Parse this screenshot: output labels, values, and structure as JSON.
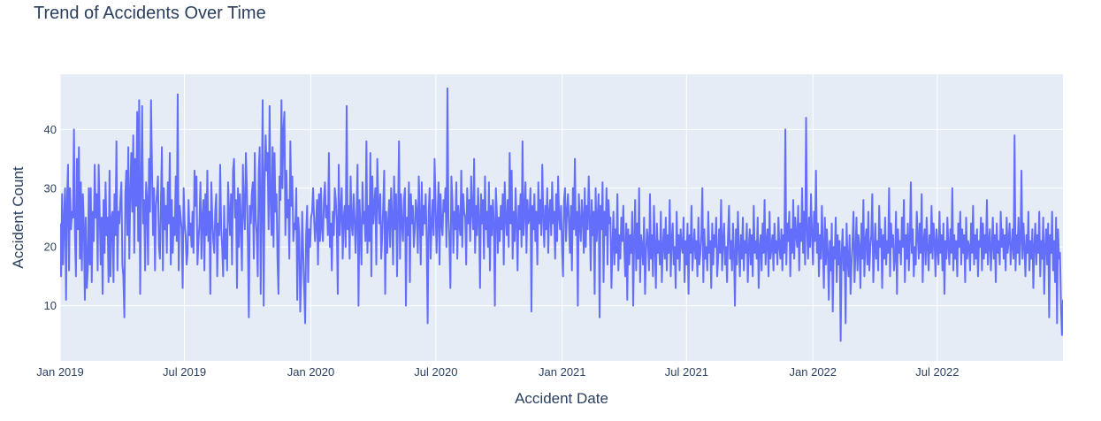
{
  "chart_data": {
    "type": "line",
    "title": "Trend of Accidents Over Time",
    "xlabel": "Accident Date",
    "ylabel": "Accident Count",
    "x_range": [
      "2019-01-01",
      "2022-12-31"
    ],
    "ylim": [
      0.6,
      49.4
    ],
    "x_ticks": [
      {
        "date": "2019-01-01",
        "label": "Jan 2019"
      },
      {
        "date": "2019-07-01",
        "label": "Jul 2019"
      },
      {
        "date": "2020-01-01",
        "label": "Jan 2020"
      },
      {
        "date": "2020-07-01",
        "label": "Jul 2020"
      },
      {
        "date": "2021-01-01",
        "label": "Jan 2021"
      },
      {
        "date": "2021-07-01",
        "label": "Jul 2021"
      },
      {
        "date": "2022-01-01",
        "label": "Jan 2022"
      },
      {
        "date": "2022-07-01",
        "label": "Jul 2022"
      }
    ],
    "y_ticks": [
      10,
      20,
      30,
      40
    ],
    "grid": true,
    "line_color": "#636efa",
    "plot_bg": "#e5ecf6",
    "series": [
      {
        "x_start": "2019-01-01",
        "x_end": "2022-12-31",
        "values": [
          24,
          15,
          29,
          17,
          25,
          30,
          11,
          28,
          34,
          16,
          30,
          23,
          26,
          25,
          40,
          22,
          15,
          35,
          23,
          37,
          18,
          31,
          16,
          29,
          24,
          11,
          25,
          13,
          16,
          30,
          17,
          30,
          14,
          26,
          21,
          34,
          25,
          29,
          16,
          34,
          26,
          17,
          25,
          12,
          28,
          19,
          31,
          22,
          25,
          14,
          33,
          15,
          25,
          26,
          14,
          29,
          22,
          38,
          16,
          26,
          24,
          28,
          31,
          17,
          15,
          8,
          29,
          33,
          22,
          37,
          18,
          29,
          36,
          26,
          39,
          19,
          35,
          27,
          43,
          21,
          45,
          12,
          30,
          44,
          24,
          28,
          16,
          31,
          28,
          17,
          35,
          26,
          45,
          33,
          22,
          30,
          16,
          27,
          29,
          32,
          20,
          18,
          27,
          37,
          16,
          30,
          23,
          27,
          19,
          31,
          24,
          36,
          17,
          28,
          19,
          25,
          22,
          32,
          21,
          46,
          16,
          27,
          25,
          23,
          13,
          30,
          24,
          22,
          17,
          19,
          28,
          22,
          24,
          20,
          26,
          19,
          33,
          27,
          32,
          17,
          21,
          24,
          31,
          18,
          25,
          28,
          16,
          29,
          22,
          33,
          21,
          26,
          12,
          31,
          25,
          21,
          19,
          26,
          29,
          15,
          24,
          22,
          34,
          23,
          20,
          15,
          27,
          18,
          23,
          16,
          31,
          26,
          22,
          29,
          17,
          33,
          35,
          25,
          28,
          13,
          30,
          20,
          29,
          24,
          16,
          34,
          26,
          23,
          36,
          30,
          21,
          8,
          27,
          24,
          29,
          31,
          18,
          36,
          25,
          22,
          15,
          33,
          37,
          12,
          28,
          45,
          10,
          31,
          39,
          33,
          36,
          23,
          44,
          28,
          22,
          37,
          20,
          36,
          26,
          29,
          18,
          12,
          32,
          28,
          45,
          30,
          40,
          43,
          22,
          33,
          25,
          28,
          18,
          38,
          27,
          32,
          21,
          24,
          23,
          30,
          11,
          25,
          22,
          9,
          15,
          26,
          19,
          13,
          7,
          22,
          27,
          14,
          23,
          20,
          25,
          26,
          30,
          25,
          21,
          24,
          28,
          17,
          29,
          21,
          30,
          23,
          21,
          28,
          31,
          25,
          27,
          22,
          36,
          20,
          24,
          16,
          26,
          22,
          30,
          28,
          24,
          12,
          34,
          22,
          26,
          30,
          18,
          25,
          27,
          20,
          44,
          23,
          27,
          18,
          32,
          24,
          22,
          29,
          25,
          19,
          25,
          34,
          10,
          28,
          23,
          17,
          31,
          24,
          26,
          21,
          38,
          19,
          27,
          21,
          36,
          15,
          32,
          24,
          27,
          30,
          17,
          35,
          28,
          24,
          29,
          18,
          22,
          27,
          33,
          12,
          26,
          19,
          24,
          28,
          20,
          30,
          25,
          17,
          32,
          23,
          29,
          15,
          26,
          38,
          18,
          29,
          24,
          21,
          28,
          30,
          10,
          25,
          22,
          31,
          14,
          29,
          24,
          27,
          20,
          23,
          28,
          26,
          19,
          32,
          25,
          17,
          31,
          22,
          27,
          24,
          29,
          21,
          7,
          26,
          30,
          18,
          24,
          28,
          22,
          35,
          27,
          19,
          25,
          31,
          17,
          29,
          24,
          22,
          28,
          26,
          30,
          20,
          47,
          25,
          21,
          13,
          32,
          28,
          19,
          26,
          23,
          31,
          18,
          27,
          24,
          22,
          33,
          20,
          29,
          26,
          25,
          17,
          30,
          24,
          28,
          21,
          32,
          26,
          23,
          35,
          19,
          27,
          22,
          30,
          25,
          13,
          29,
          24,
          28,
          18,
          32,
          23,
          26,
          20,
          31,
          16,
          27,
          22,
          28,
          24,
          10,
          30,
          26,
          19,
          25,
          21,
          27,
          23,
          29,
          17,
          31,
          25,
          22,
          28,
          20,
          36,
          24,
          33,
          18,
          26,
          21,
          30,
          24,
          16,
          27,
          23,
          29,
          20,
          38,
          22,
          26,
          31,
          19,
          28,
          24,
          25,
          30,
          9,
          27,
          23,
          29,
          21,
          26,
          17,
          31,
          24,
          28,
          22,
          34,
          25,
          20,
          27,
          23,
          30,
          19,
          26,
          28,
          22,
          31,
          24,
          26,
          18,
          29,
          21,
          32,
          25,
          23,
          27,
          20,
          15,
          28,
          30,
          21,
          26,
          29,
          24,
          19,
          27,
          16,
          30,
          23,
          35,
          22,
          26,
          10,
          29,
          24,
          21,
          28,
          25,
          19,
          30,
          20,
          27,
          23,
          32,
          25,
          16,
          28,
          22,
          26,
          12,
          30,
          21,
          25,
          29,
          8,
          27,
          23,
          31,
          14,
          26,
          22,
          30,
          17,
          28,
          24,
          25,
          13,
          20,
          26,
          17,
          23,
          19,
          29,
          16,
          22,
          18,
          25,
          21,
          27,
          20,
          15,
          24,
          11,
          23,
          17,
          22,
          19,
          26,
          10,
          21,
          28,
          16,
          24,
          18,
          30,
          14,
          22,
          20,
          17,
          25,
          12,
          19,
          23,
          21,
          16,
          29,
          18,
          22,
          15,
          27,
          20,
          13,
          24,
          19,
          21,
          17,
          26,
          14,
          20,
          23,
          18,
          25,
          16,
          22,
          19,
          28,
          15,
          21,
          24,
          17,
          20,
          13,
          26,
          18,
          22,
          16,
          23,
          20,
          19,
          25,
          14,
          21,
          17,
          24,
          12,
          22,
          19,
          27,
          16,
          20,
          23,
          18,
          21,
          15,
          25,
          17,
          19,
          22,
          30,
          14,
          23,
          18,
          20,
          16,
          26,
          19,
          21,
          13,
          24,
          17,
          22,
          20,
          25,
          15,
          18,
          23,
          19,
          28,
          16,
          21,
          24,
          17,
          20,
          14,
          22,
          27,
          18,
          21,
          16,
          24,
          19,
          10,
          23,
          17,
          26,
          20,
          15,
          22,
          18,
          25,
          16,
          21,
          19,
          24,
          14,
          20,
          23,
          17,
          22,
          15,
          27,
          19,
          21,
          18,
          25,
          13,
          20,
          22,
          16,
          24,
          19,
          28,
          17,
          21,
          23,
          15,
          26,
          18,
          20,
          22,
          16,
          24,
          19,
          21,
          17,
          25,
          20,
          18,
          23,
          16,
          22,
          19,
          40,
          17,
          24,
          21,
          26,
          15,
          23,
          19,
          28,
          18,
          25,
          22,
          20,
          27,
          16,
          24,
          21,
          30,
          19,
          26,
          17,
          42,
          23,
          18,
          25,
          20,
          29,
          22,
          17,
          26,
          21,
          33,
          19,
          24,
          15,
          22,
          18,
          27,
          20,
          13,
          25,
          17,
          23,
          19,
          11,
          21,
          16,
          24,
          9,
          20,
          18,
          25,
          14,
          22,
          17,
          21,
          4,
          19,
          23,
          16,
          20,
          7,
          24,
          18,
          15,
          22,
          12,
          17,
          21,
          26,
          14,
          19,
          25,
          16,
          22,
          20,
          13,
          24,
          18,
          28,
          15,
          21,
          23,
          17,
          26,
          16,
          20,
          22,
          29,
          14,
          19,
          24,
          18,
          21,
          16,
          27,
          20,
          23,
          13,
          22,
          18,
          25,
          17,
          21,
          19,
          30,
          15,
          24,
          20,
          22,
          16,
          18,
          26,
          12,
          23,
          19,
          21,
          17,
          25,
          20,
          28,
          14,
          22,
          18,
          24,
          16,
          21,
          31,
          19,
          23,
          15,
          20,
          17,
          26,
          22,
          18,
          24,
          19,
          29,
          14,
          21,
          23,
          17,
          25,
          20,
          16,
          22,
          19,
          27,
          18,
          24,
          21,
          15,
          23,
          20,
          17,
          26,
          19,
          22,
          16,
          24,
          12,
          21,
          18,
          25,
          20,
          17,
          23,
          19,
          30,
          16,
          22,
          18,
          21,
          15,
          24,
          20,
          26,
          17,
          23,
          19,
          22,
          14,
          25,
          18,
          21,
          20,
          16,
          24,
          19,
          27,
          17,
          22,
          18,
          23,
          15,
          21,
          20,
          25,
          16,
          24,
          18,
          22,
          19,
          28,
          17,
          21,
          23,
          16,
          20,
          25,
          18,
          22,
          14,
          24,
          19,
          21,
          17,
          26,
          20,
          23,
          18,
          22,
          16,
          25,
          19,
          21,
          24,
          17,
          20,
          23,
          18,
          39,
          16,
          22,
          19,
          25,
          17,
          21,
          33,
          18,
          24,
          20,
          15,
          22,
          19,
          26,
          16,
          21,
          18,
          23,
          13,
          20,
          24,
          17,
          22,
          19,
          26,
          15,
          21,
          18,
          25,
          12,
          20,
          23,
          17,
          24,
          8,
          22,
          19,
          26,
          16,
          21,
          14,
          25,
          7,
          23,
          18,
          19,
          10,
          5,
          11
        ]
      }
    ]
  }
}
